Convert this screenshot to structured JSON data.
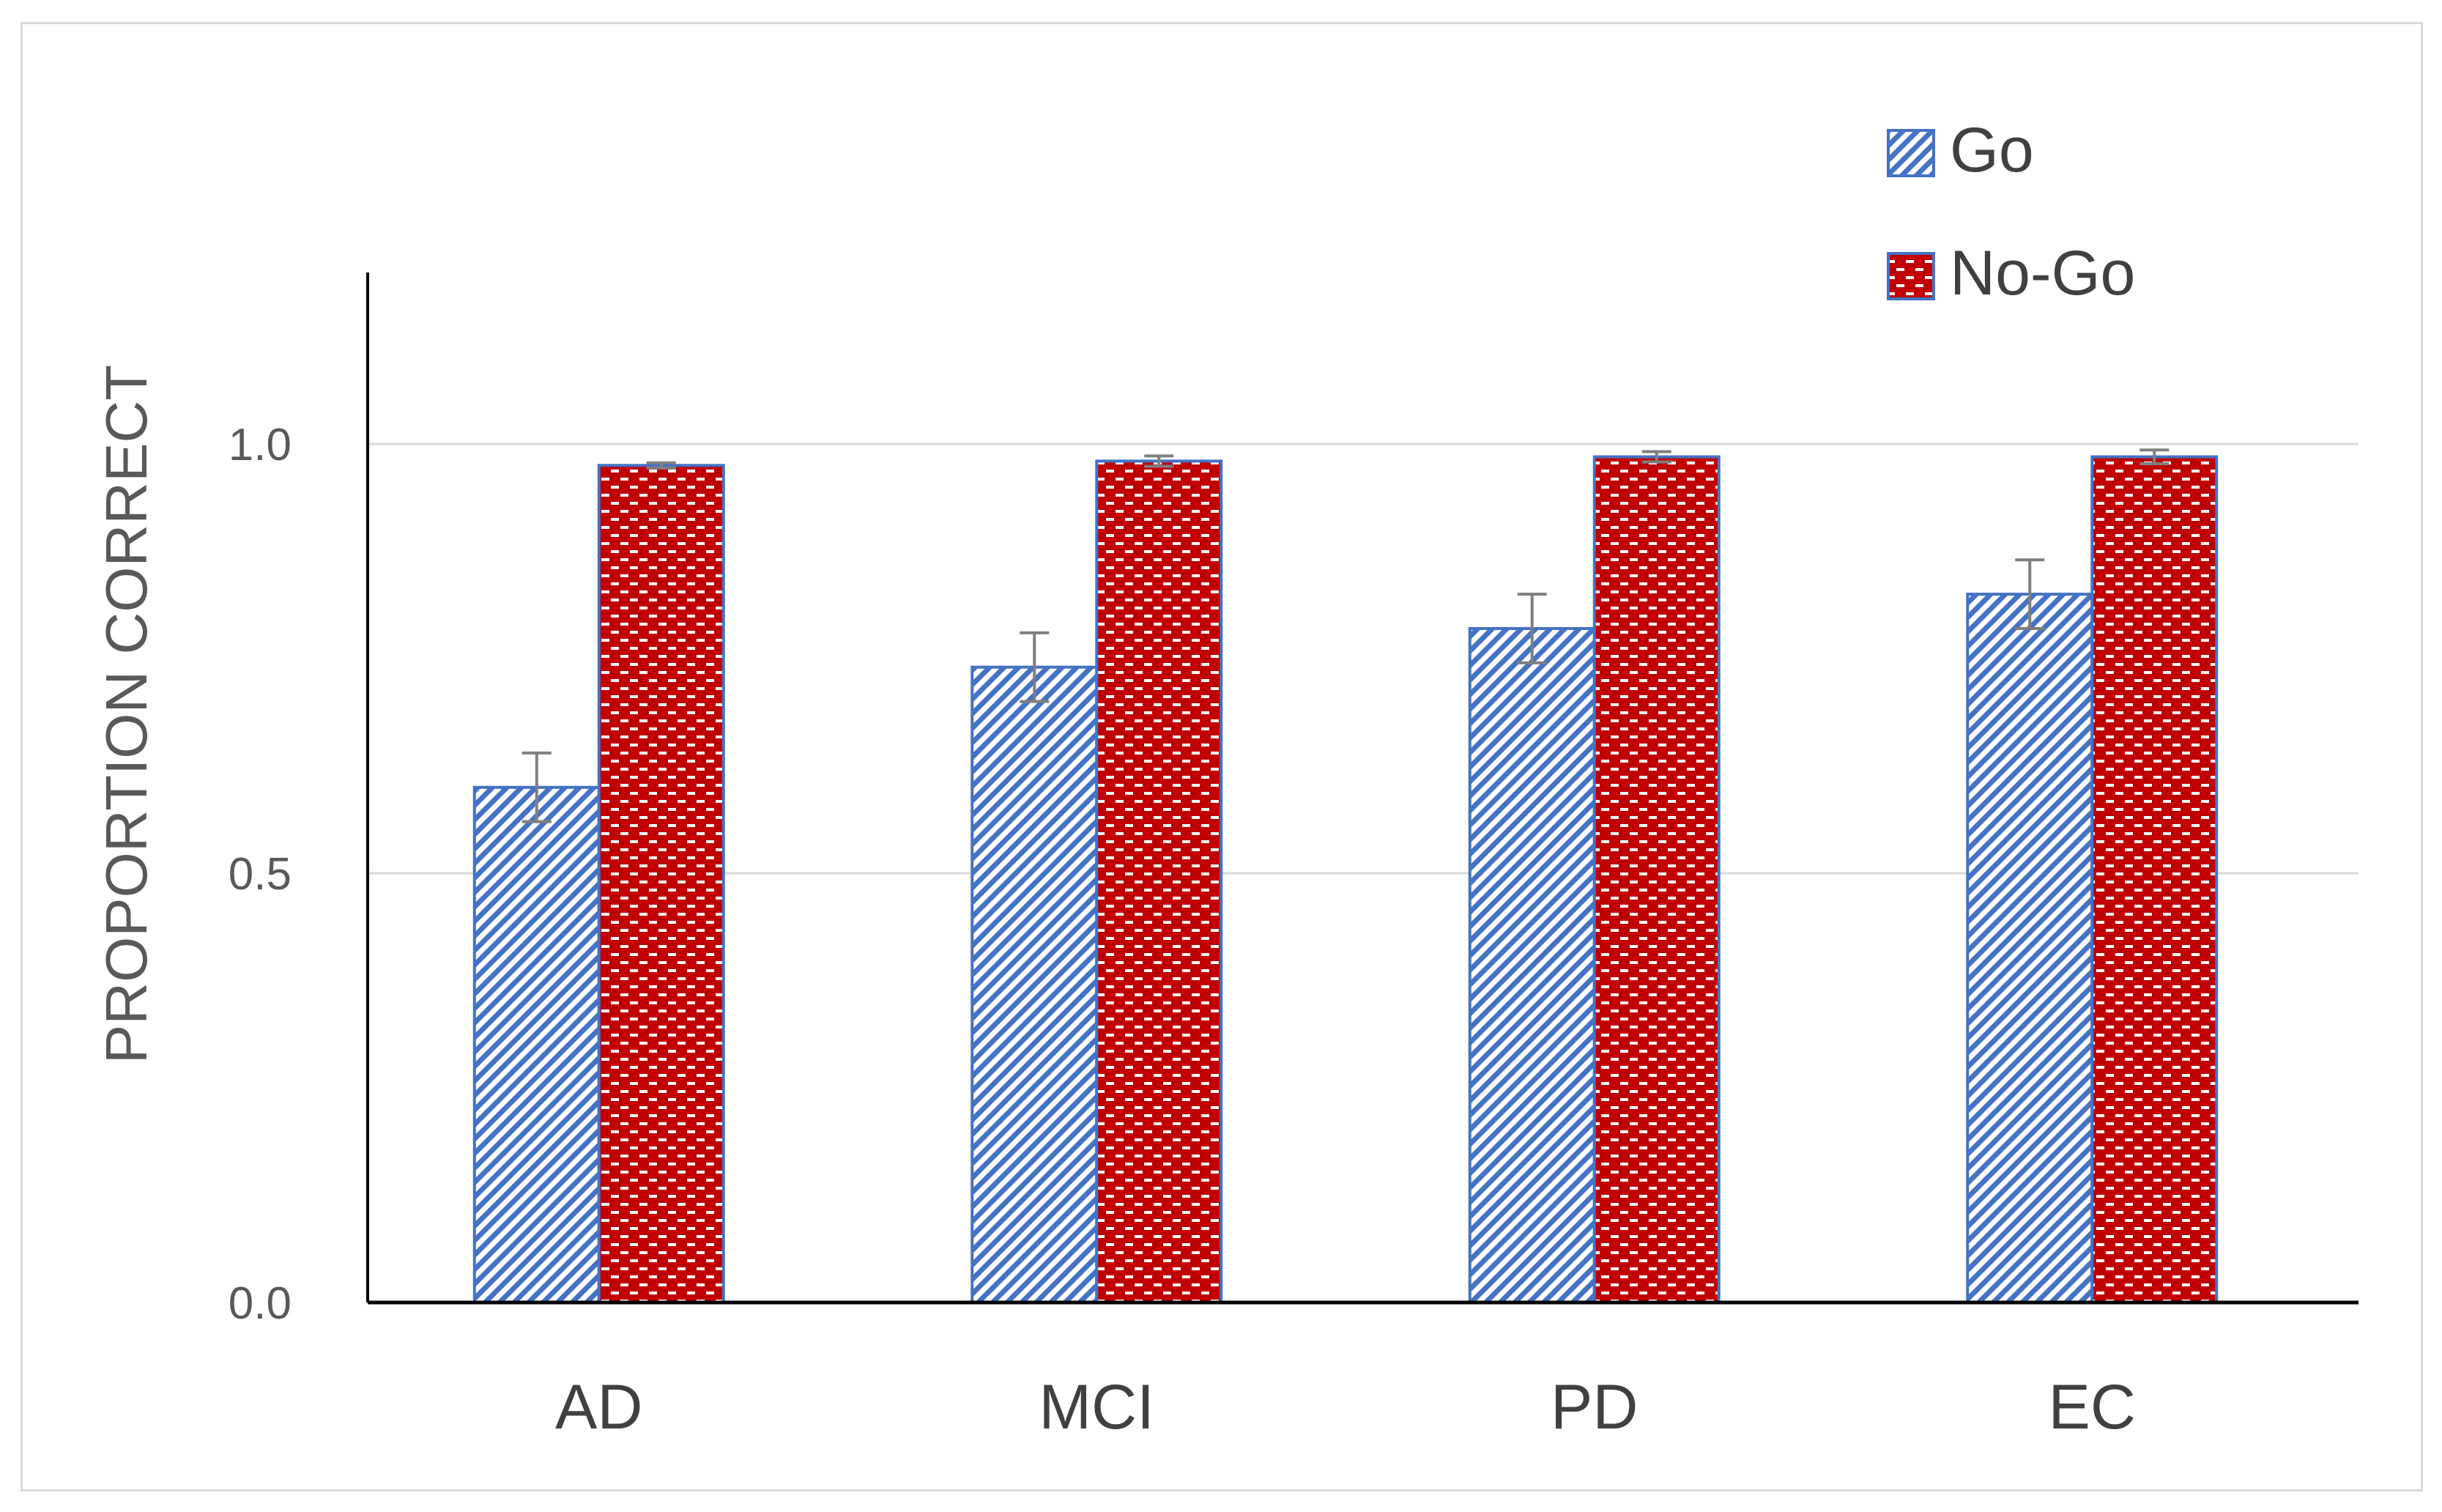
{
  "chart_data": {
    "type": "bar",
    "title": "",
    "xlabel": "",
    "ylabel": "PROPORTION CORRECT",
    "ylim": [
      0,
      1.0
    ],
    "yticks": [
      0.0,
      0.5,
      1.0
    ],
    "ytick_labels": [
      "0.0",
      "0.5",
      "1.0"
    ],
    "grid": true,
    "legend_position": "top-right",
    "categories": [
      "AD",
      "MCI",
      "PD",
      "EC"
    ],
    "series": [
      {
        "name": "Go",
        "values": [
          0.6,
          0.74,
          0.785,
          0.825
        ],
        "errors": [
          0.04,
          0.04,
          0.04,
          0.04
        ],
        "color": "#4472c4",
        "pattern": "diagonal-stripes"
      },
      {
        "name": "No-Go",
        "values": [
          0.975,
          0.98,
          0.985,
          0.985
        ],
        "errors": [
          0.003,
          0.006,
          0.006,
          0.008
        ],
        "color": "#c00000",
        "pattern": "dotted-dashes"
      }
    ],
    "colors": {
      "axis": "#000000",
      "grid": "#d9d9d9",
      "error_bar": "#7f7f7f"
    }
  }
}
